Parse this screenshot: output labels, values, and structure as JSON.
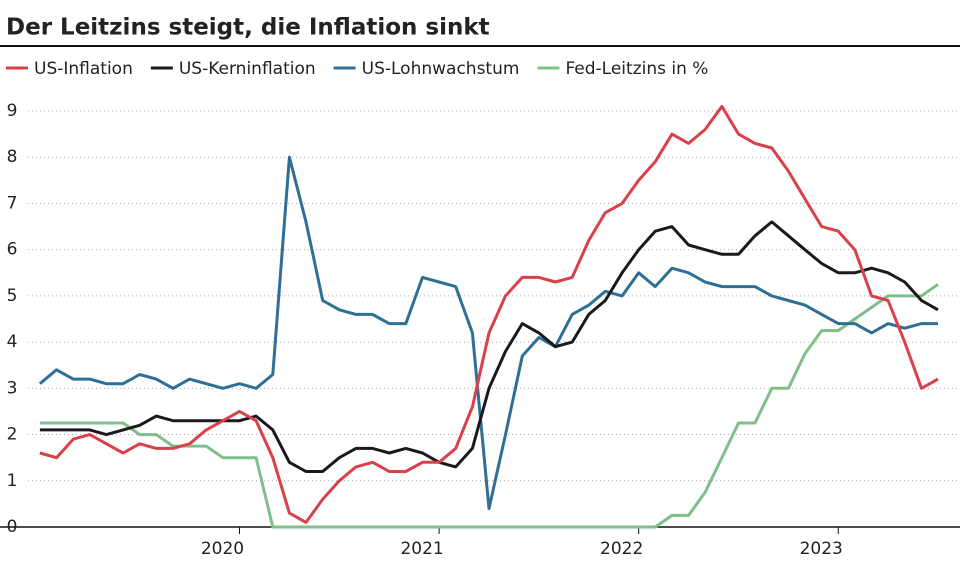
{
  "chart_data": {
    "type": "line",
    "title": "Der Leitzins steigt, die Inflation sinkt",
    "x": [
      2019,
      2019.083,
      2019.167,
      2019.25,
      2019.333,
      2019.417,
      2019.5,
      2019.583,
      2019.667,
      2019.75,
      2019.833,
      2019.917,
      2020,
      2020.083,
      2020.167,
      2020.25,
      2020.333,
      2020.417,
      2020.5,
      2020.583,
      2020.667,
      2020.75,
      2020.833,
      2020.917,
      2021,
      2021.083,
      2021.167,
      2021.25,
      2021.333,
      2021.417,
      2021.5,
      2021.583,
      2021.667,
      2021.75,
      2021.833,
      2021.917,
      2022,
      2022.083,
      2022.167,
      2022.25,
      2022.333,
      2022.417,
      2022.5,
      2022.583,
      2022.667,
      2022.75,
      2022.833,
      2022.917,
      2023,
      2023.083,
      2023.167,
      2023.25,
      2023.333,
      2023.417,
      2023.5
    ],
    "series": [
      {
        "name": "US-Inflation",
        "color": "#d9404a",
        "values": [
          1.6,
          1.5,
          1.9,
          2.0,
          1.8,
          1.6,
          1.8,
          1.7,
          1.7,
          1.8,
          2.1,
          2.3,
          2.5,
          2.3,
          1.5,
          0.3,
          0.1,
          0.6,
          1.0,
          1.3,
          1.4,
          1.2,
          1.2,
          1.4,
          1.4,
          1.7,
          2.6,
          4.2,
          5.0,
          5.4,
          5.4,
          5.3,
          5.4,
          6.2,
          6.8,
          7.0,
          7.5,
          7.9,
          8.5,
          8.3,
          8.6,
          9.1,
          8.5,
          8.3,
          8.2,
          7.7,
          7.1,
          6.5,
          6.4,
          6.0,
          5.0,
          4.9,
          4.0,
          3.0,
          3.2
        ]
      },
      {
        "name": "US-Kerninflation",
        "color": "#1a1a1a",
        "values": [
          2.1,
          2.1,
          2.1,
          2.1,
          2.0,
          2.1,
          2.2,
          2.4,
          2.3,
          2.3,
          2.3,
          2.3,
          2.3,
          2.4,
          2.1,
          1.4,
          1.2,
          1.2,
          1.5,
          1.7,
          1.7,
          1.6,
          1.7,
          1.6,
          1.4,
          1.3,
          1.7,
          3.0,
          3.8,
          4.4,
          4.2,
          3.9,
          4.0,
          4.6,
          4.9,
          5.5,
          6.0,
          6.4,
          6.5,
          6.1,
          6.0,
          5.9,
          5.9,
          6.3,
          6.6,
          6.3,
          6.0,
          5.7,
          5.5,
          5.5,
          5.6,
          5.5,
          5.3,
          4.9,
          4.7
        ]
      },
      {
        "name": "US-Lohnwachstum",
        "color": "#2f6f96",
        "values": [
          3.1,
          3.4,
          3.2,
          3.2,
          3.1,
          3.1,
          3.3,
          3.2,
          3.0,
          3.2,
          3.1,
          3.0,
          3.1,
          3.0,
          3.3,
          8.0,
          6.6,
          4.9,
          4.7,
          4.6,
          4.6,
          4.4,
          4.4,
          5.4,
          5.3,
          5.2,
          4.2,
          0.4,
          2.0,
          3.7,
          4.1,
          3.9,
          4.6,
          4.8,
          5.1,
          5.0,
          5.5,
          5.2,
          5.6,
          5.5,
          5.3,
          5.2,
          5.2,
          5.2,
          5.0,
          4.9,
          4.8,
          4.6,
          4.4,
          4.4,
          4.2,
          4.4,
          4.3,
          4.4,
          4.4
        ]
      },
      {
        "name": "Fed-Leitzins in %",
        "color": "#7fbf8a",
        "values": [
          2.25,
          2.25,
          2.25,
          2.25,
          2.25,
          2.25,
          2.0,
          2.0,
          1.75,
          1.75,
          1.75,
          1.5,
          1.5,
          1.5,
          0,
          0,
          0,
          0,
          0,
          0,
          0,
          0,
          0,
          0,
          0,
          0,
          0,
          0,
          0,
          0,
          0,
          0,
          0,
          0,
          0,
          0,
          0,
          0,
          0.25,
          0.25,
          0.75,
          1.5,
          2.25,
          2.25,
          3.0,
          3.0,
          3.75,
          4.25,
          4.25,
          4.5,
          4.75,
          5.0,
          5.0,
          5.0,
          5.25
        ]
      }
    ],
    "xlim": [
      2018.8,
      2023.61
    ],
    "xticks": [
      2020,
      2021,
      2022,
      2023
    ],
    "ylim": [
      0,
      9
    ],
    "yticks": [
      0,
      1,
      2,
      3,
      4,
      5,
      6,
      7,
      8,
      9
    ],
    "grid": true
  }
}
